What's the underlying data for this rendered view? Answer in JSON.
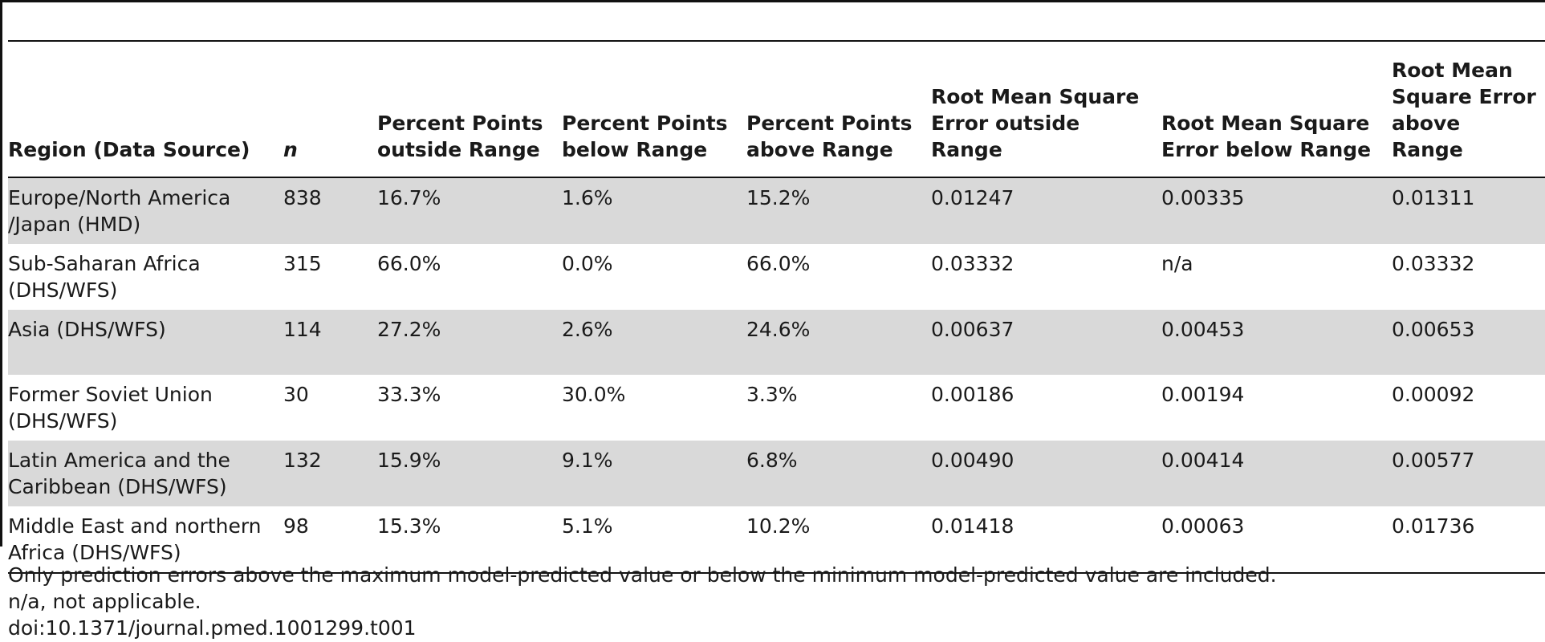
{
  "table": {
    "headers": [
      "Region (Data Source)",
      "n",
      "Percent Points outside Range",
      "Percent Points below Range",
      "Percent Points above Range",
      "Root Mean Square Error outside Range",
      "Root Mean Square Error below Range",
      "Root Mean Square Error above Range"
    ],
    "rows": [
      [
        "Europe/North America /Japan (HMD)",
        "838",
        "16.7%",
        "1.6%",
        "15.2%",
        "0.01247",
        "0.00335",
        "0.01311"
      ],
      [
        "Sub-Saharan Africa (DHS/WFS)",
        "315",
        "66.0%",
        "0.0%",
        "66.0%",
        "0.03332",
        "n/a",
        "0.03332"
      ],
      [
        "Asia (DHS/WFS)",
        "114",
        "27.2%",
        "2.6%",
        "24.6%",
        "0.00637",
        "0.00453",
        "0.00653"
      ],
      [
        "Former Soviet Union (DHS/WFS)",
        "30",
        "33.3%",
        "30.0%",
        "3.3%",
        "0.00186",
        "0.00194",
        "0.00092"
      ],
      [
        "Latin America and the Caribbean (DHS/WFS)",
        "132",
        "15.9%",
        "9.1%",
        "6.8%",
        "0.00490",
        "0.00414",
        "0.00577"
      ],
      [
        "Middle East and northern Africa (DHS/WFS)",
        "98",
        "15.3%",
        "5.1%",
        "10.2%",
        "0.01418",
        "0.00063",
        "0.01736"
      ]
    ]
  },
  "notes": {
    "footnote": "Only prediction errors above the maximum model-predicted value or below the minimum model-predicted value are included.",
    "abbreviation": "n/a, not applicable.",
    "doi": "doi:10.1371/journal.pmed.1001299.t001"
  }
}
